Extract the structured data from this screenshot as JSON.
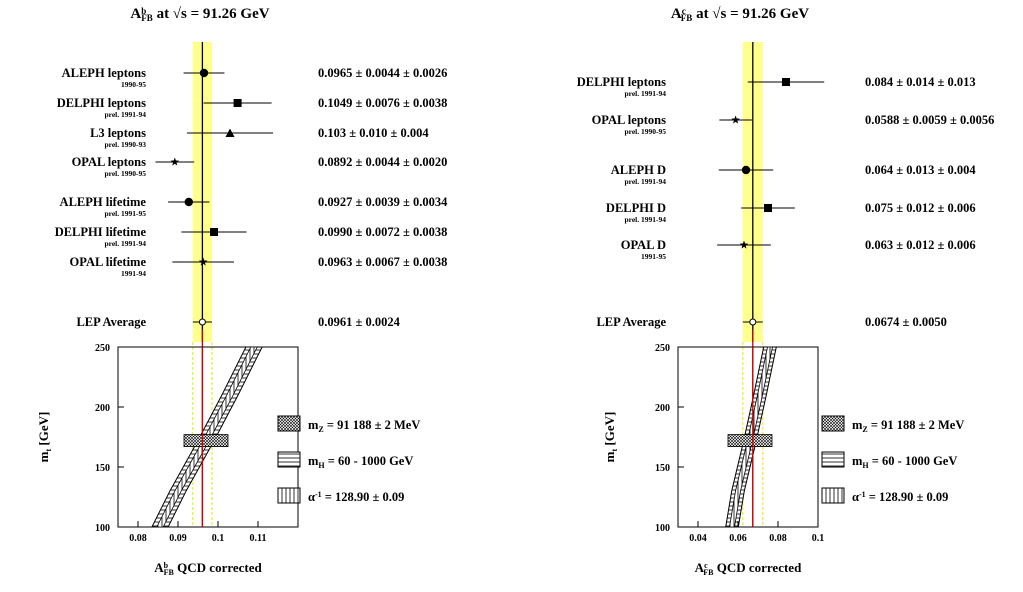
{
  "chart_data": [
    {
      "type": "scatter",
      "title": {
        "base": "A",
        "sup": "b",
        "sub": "FB",
        "rest": " at √s = 91.26 GeV"
      },
      "xaxis_label": {
        "base": "A",
        "sup": "b",
        "sub": "FB",
        "rest": " QCD corrected"
      },
      "yaxis_label": {
        "base": "m",
        "sub": "t",
        "rest": " [GeV]"
      },
      "xlim": [
        0.075,
        0.12
      ],
      "xticks": [
        "0.08",
        "0.09",
        "0.1",
        "0.11"
      ],
      "ylim": [
        100,
        250
      ],
      "yticks": [
        "100",
        "150",
        "200",
        "250"
      ],
      "band": {
        "central": 0.0961,
        "error": 0.0024
      },
      "measurements": [
        {
          "name": "ALEPH leptons",
          "note": "1990-95",
          "value": 0.0965,
          "stat": 0.0044,
          "syst": 0.0026,
          "text": "0.0965 ± 0.0044 ± 0.0026",
          "marker": "circle"
        },
        {
          "name": "DELPHI leptons",
          "note": "prel. 1991-94",
          "value": 0.1049,
          "stat": 0.0076,
          "syst": 0.0038,
          "text": "0.1049 ± 0.0076 ± 0.0038",
          "marker": "square"
        },
        {
          "name": "L3 leptons",
          "note": "prel. 1990-93",
          "value": 0.103,
          "stat": 0.01,
          "syst": 0.004,
          "text": "0.103 ± 0.010 ± 0.004",
          "marker": "triangle"
        },
        {
          "name": "OPAL leptons",
          "note": "prel. 1990-95",
          "value": 0.0892,
          "stat": 0.0044,
          "syst": 0.002,
          "text": "0.0892 ± 0.0044 ± 0.0020",
          "marker": "star"
        },
        {
          "name": "ALEPH lifetime",
          "note": "prel. 1991-95",
          "value": 0.0927,
          "stat": 0.0039,
          "syst": 0.0034,
          "text": "0.0927 ± 0.0039 ± 0.0034",
          "marker": "circle"
        },
        {
          "name": "DELPHI lifetime",
          "note": "prel. 1991-94",
          "value": 0.099,
          "stat": 0.0072,
          "syst": 0.0038,
          "text": "0.0990 ± 0.0072 ± 0.0038",
          "marker": "square"
        },
        {
          "name": "OPAL lifetime",
          "note": "1991-94",
          "value": 0.0963,
          "stat": 0.0067,
          "syst": 0.0038,
          "text": "0.0963 ± 0.0067 ± 0.0038",
          "marker": "star"
        }
      ],
      "average": {
        "name": "LEP Average",
        "value": 0.0961,
        "error": 0.0024,
        "text": "0.0961 ± 0.0024"
      },
      "sm_prediction": [
        [
          0.0855,
          100
        ],
        [
          0.09,
          130
        ],
        [
          0.097,
          172
        ],
        [
          0.103,
          210
        ],
        [
          0.109,
          250
        ]
      ],
      "sm_reference_point": {
        "x": 0.097,
        "y": 172
      },
      "legend": [
        {
          "label": {
            "base": "m",
            "sub": "Z",
            "rest": " = 91 188 ± 2 MeV"
          },
          "pattern": "crosshatch"
        },
        {
          "label": {
            "base": "m",
            "sub": "H",
            "rest": " = 60 - 1000 GeV"
          },
          "pattern": "horizontal"
        },
        {
          "label": {
            "base": "α",
            "sup": "-1",
            "rest": " = 128.90 ± 0.09"
          },
          "pattern": "vertical"
        }
      ]
    },
    {
      "type": "scatter",
      "title": {
        "base": "A",
        "sup": "c",
        "sub": "FB",
        "rest": " at √s = 91.26 GeV"
      },
      "xaxis_label": {
        "base": "A",
        "sup": "c",
        "sub": "FB",
        "rest": " QCD corrected"
      },
      "yaxis_label": {
        "base": "m",
        "sub": "t",
        "rest": " [GeV]"
      },
      "xlim": [
        0.03,
        0.1
      ],
      "xticks": [
        "0.04",
        "0.06",
        "0.08",
        "0.1"
      ],
      "ylim": [
        100,
        250
      ],
      "yticks": [
        "100",
        "150",
        "200",
        "250"
      ],
      "band": {
        "central": 0.0674,
        "error": 0.005
      },
      "measurements": [
        {
          "name": "DELPHI leptons",
          "note": "prel. 1991-94",
          "value": 0.084,
          "stat": 0.014,
          "syst": 0.013,
          "text": "0.084 ± 0.014 ± 0.013",
          "marker": "square"
        },
        {
          "name": "OPAL leptons",
          "note": "prel. 1990-95",
          "value": 0.0588,
          "stat": 0.0059,
          "syst": 0.0056,
          "text": "0.0588 ± 0.0059 ± 0.0056",
          "marker": "star"
        },
        {
          "name": "ALEPH D",
          "note": "prel. 1991-94",
          "value": 0.064,
          "stat": 0.013,
          "syst": 0.004,
          "text": "0.064 ± 0.013 ± 0.004",
          "marker": "circle"
        },
        {
          "name": "DELPHI D",
          "note": "prel. 1991-94",
          "value": 0.075,
          "stat": 0.012,
          "syst": 0.006,
          "text": "0.075 ± 0.012 ± 0.006",
          "marker": "square"
        },
        {
          "name": "OPAL D",
          "note": "1991-95",
          "value": 0.063,
          "stat": 0.012,
          "syst": 0.006,
          "text": "0.063 ± 0.012 ± 0.006",
          "marker": "star"
        }
      ],
      "average": {
        "name": "LEP Average",
        "value": 0.0674,
        "error": 0.005,
        "text": "0.0674 ± 0.0050"
      },
      "sm_prediction": [
        [
          0.057,
          100
        ],
        [
          0.06,
          130
        ],
        [
          0.066,
          172
        ],
        [
          0.071,
          210
        ],
        [
          0.076,
          250
        ]
      ],
      "sm_reference_point": {
        "x": 0.066,
        "y": 172
      },
      "legend": [
        {
          "label": {
            "base": "m",
            "sub": "Z",
            "rest": " = 91 188 ± 2 MeV"
          },
          "pattern": "crosshatch"
        },
        {
          "label": {
            "base": "m",
            "sub": "H",
            "rest": " = 60 - 1000 GeV"
          },
          "pattern": "horizontal"
        },
        {
          "label": {
            "base": "α",
            "sup": "-1",
            "rest": " = 128.90 ± 0.09"
          },
          "pattern": "vertical"
        }
      ]
    }
  ]
}
